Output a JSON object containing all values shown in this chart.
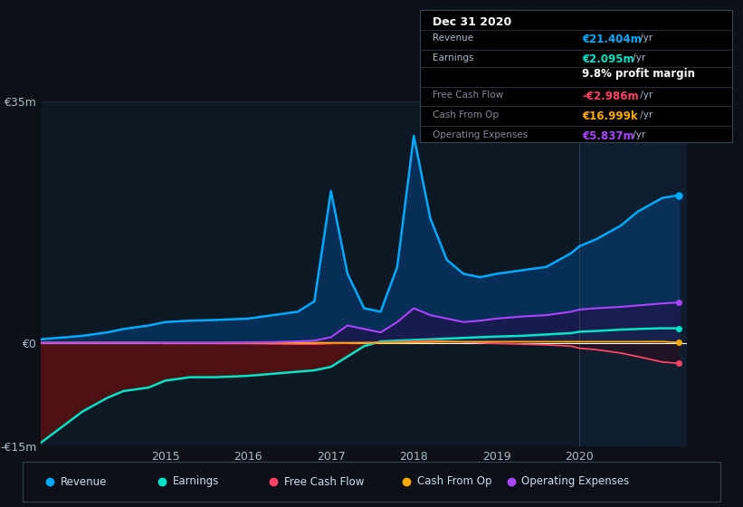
{
  "bg_color": "#0d1117",
  "plot_bg_color": "#0d1825",
  "grid_color": "#1e2d3d",
  "zero_line_color": "#ffffff",
  "ylim": [
    -15,
    35
  ],
  "yticks": [
    -15,
    0,
    35
  ],
  "ytick_labels": [
    "-€15m",
    "€0",
    "€35m"
  ],
  "xlim": [
    2013.5,
    2021.3
  ],
  "xticks": [
    2015,
    2016,
    2017,
    2018,
    2019,
    2020
  ],
  "divider_x": 2020.0,
  "series_colors": {
    "revenue": "#00aaff",
    "earnings": "#00e5c8",
    "free_cash_flow": "#ff4466",
    "cash_from_op": "#ffaa00",
    "operating_expenses": "#aa44ff"
  },
  "legend": [
    {
      "label": "Revenue",
      "color": "#00aaff"
    },
    {
      "label": "Earnings",
      "color": "#00e5c8"
    },
    {
      "label": "Free Cash Flow",
      "color": "#ff4466"
    },
    {
      "label": "Cash From Op",
      "color": "#ffaa00"
    },
    {
      "label": "Operating Expenses",
      "color": "#aa44ff"
    }
  ],
  "table": {
    "title": "Dec 31 2020",
    "rows": [
      {
        "label": "Revenue",
        "label_color": "#aabbcc",
        "value": "€21.404m",
        "suffix": " /yr",
        "value_color": "#00aaff"
      },
      {
        "label": "Earnings",
        "label_color": "#aabbcc",
        "value": "€2.095m",
        "suffix": " /yr",
        "value_color": "#00e5c8"
      },
      {
        "label": "",
        "label_color": "#aabbcc",
        "value": "9.8% profit margin",
        "suffix": "",
        "value_color": "#ffffff"
      },
      {
        "label": "Free Cash Flow",
        "label_color": "#888899",
        "value": "-€2.986m",
        "suffix": " /yr",
        "value_color": "#ff4466"
      },
      {
        "label": "Cash From Op",
        "label_color": "#888899",
        "value": "€16.999k",
        "suffix": " /yr",
        "value_color": "#ffaa00"
      },
      {
        "label": "Operating Expenses",
        "label_color": "#888899",
        "value": "€5.837m",
        "suffix": " /yr",
        "value_color": "#aa44ff"
      }
    ]
  }
}
